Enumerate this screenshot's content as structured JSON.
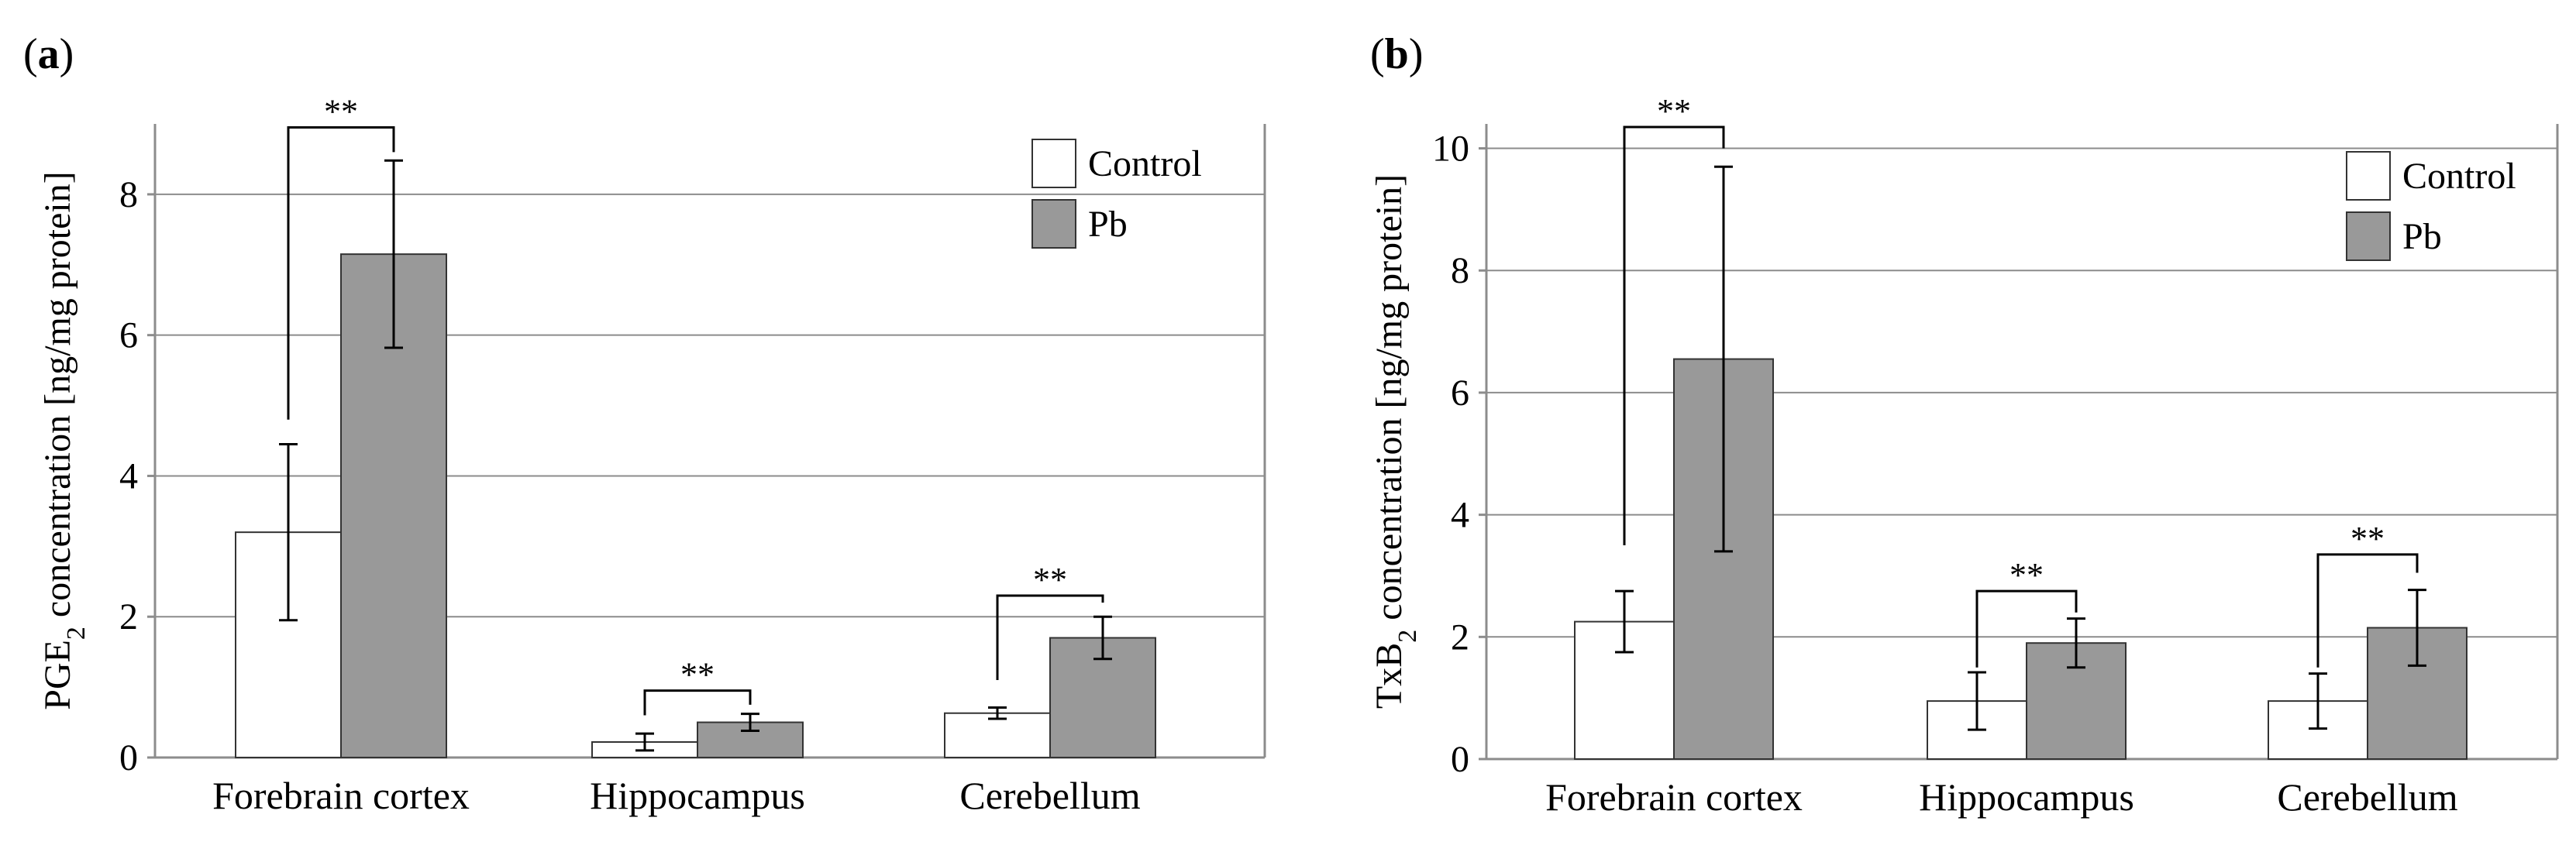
{
  "colors": {
    "control_fill": "#ffffff",
    "pb_fill": "#999999",
    "bar_outline": "#333333",
    "grid": "#8c8c8c"
  },
  "chart_data": [
    {
      "id": "a",
      "type": "bar",
      "panel_label": "a",
      "ylabel_main": "PGE",
      "ylabel_sub": "2",
      "ylabel_rest": " concentration [ng/mg protein]",
      "ylim": [
        0,
        9
      ],
      "yticks": [
        0,
        2,
        4,
        6,
        8
      ],
      "grid": true,
      "legend_position": "top-right",
      "categories": [
        "Forebrain cortex",
        "Hippocampus",
        "Cerebellum"
      ],
      "series": [
        {
          "name": "Control",
          "values": [
            3.2,
            0.22,
            0.63
          ],
          "errors": [
            1.25,
            0.12,
            0.08
          ]
        },
        {
          "name": "Pb",
          "values": [
            7.15,
            0.5,
            1.7
          ],
          "errors": [
            1.33,
            0.12,
            0.3
          ]
        }
      ],
      "significance": [
        {
          "category_index": 0,
          "label": "**",
          "bracket_top": 8.95,
          "control_from": 4.8,
          "pb_to": 8.6
        },
        {
          "category_index": 1,
          "label": "**",
          "bracket_top": 0.95,
          "control_from": 0.6,
          "pb_to": 0.75
        },
        {
          "category_index": 2,
          "label": "**",
          "bracket_top": 2.3,
          "control_from": 1.1,
          "pb_to": 2.2
        }
      ]
    },
    {
      "id": "b",
      "type": "bar",
      "panel_label": "b",
      "ylabel_main": "TxB",
      "ylabel_sub": "2",
      "ylabel_rest": " concentration [ng/mg protein]",
      "ylim": [
        0,
        10.4
      ],
      "yticks": [
        0,
        2,
        4,
        6,
        8,
        10
      ],
      "grid": true,
      "legend_position": "top-right",
      "categories": [
        "Forebrain cortex",
        "Hippocampus",
        "Cerebellum"
      ],
      "series": [
        {
          "name": "Control",
          "values": [
            2.25,
            0.95,
            0.95
          ],
          "errors": [
            0.5,
            0.47,
            0.45
          ]
        },
        {
          "name": "Pb",
          "values": [
            6.55,
            1.9,
            2.15
          ],
          "errors": [
            3.15,
            0.4,
            0.62
          ]
        }
      ],
      "significance": [
        {
          "category_index": 0,
          "label": "**",
          "bracket_top": 10.35,
          "control_from": 3.5,
          "pb_to": 10.0
        },
        {
          "category_index": 1,
          "label": "**",
          "bracket_top": 2.75,
          "control_from": 1.5,
          "pb_to": 2.4
        },
        {
          "category_index": 2,
          "label": "**",
          "bracket_top": 3.35,
          "control_from": 1.5,
          "pb_to": 3.05
        }
      ]
    }
  ]
}
